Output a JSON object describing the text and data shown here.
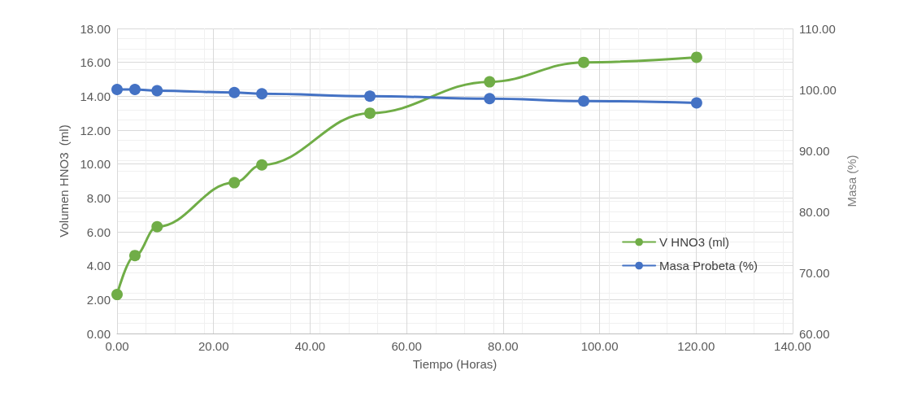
{
  "chart_data": {
    "type": "line",
    "xlabel": "Tiempo (Horas)",
    "ylabel": "Volumen HNO3  (ml)",
    "y2label": "Masa (%)",
    "series": [
      {
        "name": "V HNO3 (ml)",
        "color": "#70ad47",
        "x": [
          0,
          3.7,
          8.3,
          24.3,
          30,
          52.4,
          77.2,
          96.7,
          120.1
        ],
        "values": [
          2.3,
          4.6,
          6.3,
          8.9,
          9.95,
          13.0,
          14.85,
          16.0,
          16.3
        ]
      },
      {
        "name": "Masa Probeta (%)",
        "color": "#4472c4",
        "axis": "y2",
        "x": [
          0,
          3.7,
          8.3,
          24.3,
          30,
          52.4,
          77.2,
          96.7,
          120.1
        ],
        "values": [
          100,
          100,
          99.8,
          99.5,
          99.3,
          98.9,
          98.5,
          98.1,
          97.8
        ]
      }
    ],
    "xlim": [
      0,
      140
    ],
    "xticks": [
      {
        "value": 0,
        "label": "0.00"
      },
      {
        "value": 20,
        "label": "20.00"
      },
      {
        "value": 40,
        "label": "40.00"
      },
      {
        "value": 60,
        "label": "60.00"
      },
      {
        "value": 80,
        "label": "80.00"
      },
      {
        "value": 100,
        "label": "100.00"
      },
      {
        "value": 120,
        "label": "120.00"
      },
      {
        "value": 140,
        "label": "140.00"
      }
    ],
    "ylim": [
      0,
      18
    ],
    "yticks": [
      {
        "value": 0,
        "label": "0.00"
      },
      {
        "value": 2,
        "label": "2.00"
      },
      {
        "value": 4,
        "label": "4.00"
      },
      {
        "value": 6,
        "label": "6.00"
      },
      {
        "value": 8,
        "label": "8.00"
      },
      {
        "value": 10,
        "label": "10.00"
      },
      {
        "value": 12,
        "label": "12.00"
      },
      {
        "value": 14,
        "label": "14.00"
      },
      {
        "value": 16,
        "label": "16.00"
      },
      {
        "value": 18,
        "label": "18.00"
      }
    ],
    "y2lim": [
      60,
      110
    ],
    "y2ticks": [
      {
        "value": 60,
        "label": "60.00"
      },
      {
        "value": 70,
        "label": "70.00"
      },
      {
        "value": 80,
        "label": "80.00"
      },
      {
        "value": 90,
        "label": "90.00"
      },
      {
        "value": 100,
        "label": "100.00"
      },
      {
        "value": 110,
        "label": "110.00"
      }
    ],
    "grid": true,
    "legend": "center right",
    "marker": "circle",
    "line_style": "solid"
  }
}
